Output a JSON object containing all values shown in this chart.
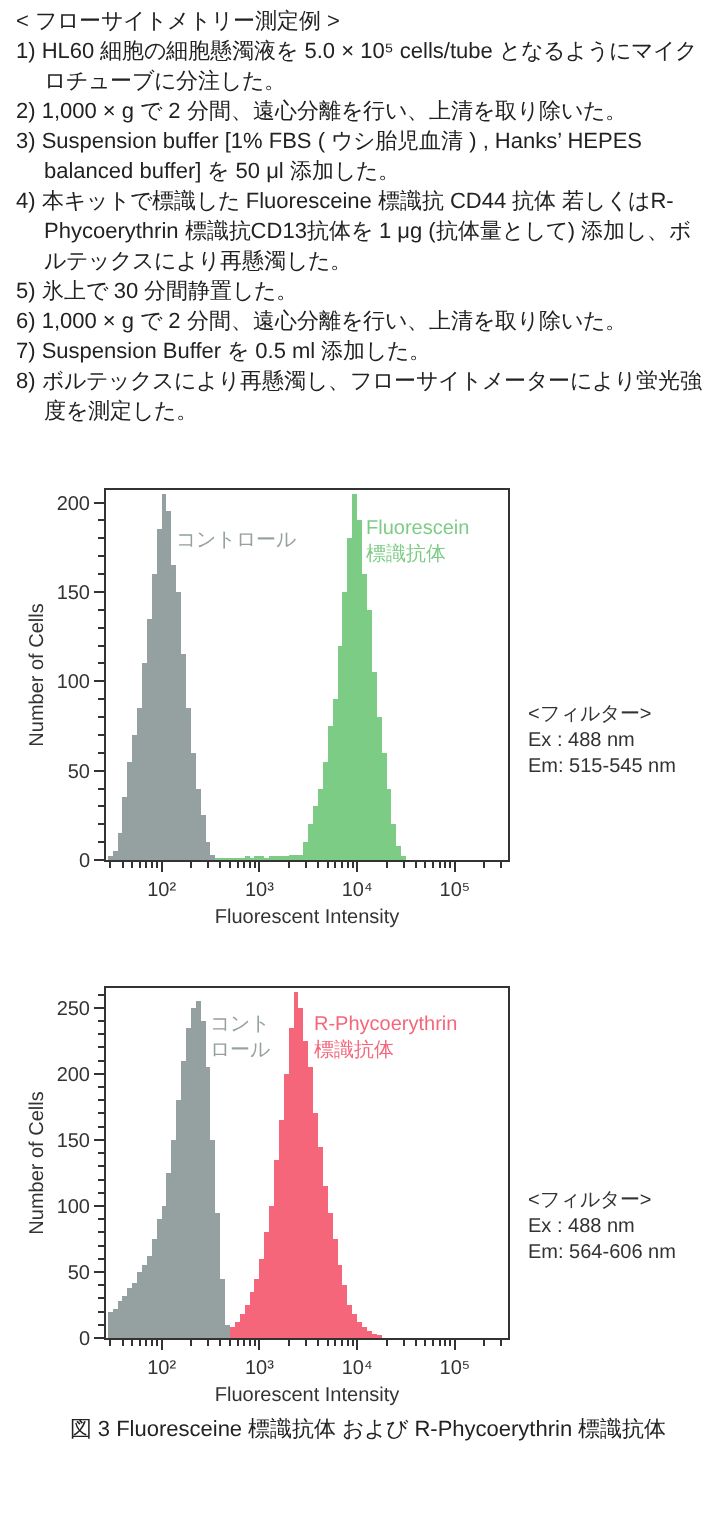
{
  "chart_data": [
    {
      "type": "histogram",
      "title": "< フローサイトメトリー測定例 >",
      "subtitle": "1) HL60 細胞の細胞懸濁液を 5.0 × 10⁵ cells/tube となるようにマイクロチューブに分注した。\n2) 1,000 × g で 2 分間、遠心分離を行い、上清を取り除いた。\n3) Suspension buffer [1% FBS ( ウシ胎児血清 ) , Hanks’ HEPES balanced buffer] を 50 μl 添加した。\n4) 本キットで標識した Fluoresceine 標識抗 CD44 抗体 若しくはR-Phycoerythrin 標識抗CD13抗体を 1 μg (抗体量として) 添加し、ボルテックスにより再懸濁した。\n5) 氷上で 30 分間静置した。\n6) 1,000 × g で 2 分間、遠心分離を行い、上清を取り除いた。\n7) Suspension Buffer を 0.5 ml 添加した。\n8) ボルテックスにより再懸濁し、フローサイトメーターにより蛍光強度を測定した。",
      "xlabel": "Fluorescent Intensity",
      "ylabel": "Number of Cells",
      "annotations": [
        "<フィルター>\nEx : 488 nm\nEm: 515-545 nm"
      ],
      "log": "x",
      "xlim": [
        27,
        350000
      ],
      "xticks": [
        {
          "value": 30,
          "label": null
        },
        {
          "value": 40,
          "label": null
        },
        {
          "value": 50,
          "label": null
        },
        {
          "value": 60,
          "label": null
        },
        {
          "value": 70,
          "label": null
        },
        {
          "value": 80,
          "label": null
        },
        {
          "value": 90,
          "label": null
        },
        {
          "value": 100,
          "label": "10²"
        },
        {
          "value": 200,
          "label": null
        },
        {
          "value": 300,
          "label": null
        },
        {
          "value": 400,
          "label": null
        },
        {
          "value": 500,
          "label": null
        },
        {
          "value": 600,
          "label": null
        },
        {
          "value": 700,
          "label": null
        },
        {
          "value": 800,
          "label": null
        },
        {
          "value": 900,
          "label": null
        },
        {
          "value": 1000,
          "label": "10³"
        },
        {
          "value": 2000,
          "label": null
        },
        {
          "value": 3000,
          "label": null
        },
        {
          "value": 4000,
          "label": null
        },
        {
          "value": 5000,
          "label": null
        },
        {
          "value": 6000,
          "label": null
        },
        {
          "value": 7000,
          "label": null
        },
        {
          "value": 8000,
          "label": null
        },
        {
          "value": 9000,
          "label": null
        },
        {
          "value": 10000,
          "label": "10⁴"
        },
        {
          "value": 20000,
          "label": null
        },
        {
          "value": 30000,
          "label": null
        },
        {
          "value": 40000,
          "label": null
        },
        {
          "value": 50000,
          "label": null
        },
        {
          "value": 60000,
          "label": null
        },
        {
          "value": 70000,
          "label": null
        },
        {
          "value": 80000,
          "label": null
        },
        {
          "value": 90000,
          "label": null
        },
        {
          "value": 100000,
          "label": "10⁵"
        },
        {
          "value": 200000,
          "label": null
        },
        {
          "value": 300000,
          "label": null
        }
      ],
      "ylim": [
        0,
        207
      ],
      "yticks": [
        0,
        {
          "value": 10,
          "label": null
        },
        {
          "value": 20,
          "label": null
        },
        {
          "value": 30,
          "label": null
        },
        {
          "value": 40,
          "label": null
        },
        50,
        {
          "value": 60,
          "label": null
        },
        {
          "value": 70,
          "label": null
        },
        {
          "value": 80,
          "label": null
        },
        {
          "value": 90,
          "label": null
        },
        100,
        {
          "value": 110,
          "label": null
        },
        {
          "value": 120,
          "label": null
        },
        {
          "value": 130,
          "label": null
        },
        {
          "value": 140,
          "label": null
        },
        150,
        {
          "value": 160,
          "label": null
        },
        {
          "value": 170,
          "label": null
        },
        {
          "value": 180,
          "label": null
        },
        {
          "value": 190,
          "label": null
        },
        200
      ],
      "bins": [
        28.2,
        31.6,
        35.5,
        39.8,
        44.7,
        50.1,
        56.2,
        63.1,
        70.8,
        79.4,
        89.1,
        100,
        112,
        126,
        141,
        158,
        178,
        200,
        224,
        251,
        282,
        316,
        355,
        398,
        447,
        501,
        562,
        631,
        708,
        794,
        891,
        1000,
        1120,
        1260,
        1410,
        1580,
        1780,
        2000,
        2240,
        2510,
        2820,
        3160,
        3550,
        3980,
        4470,
        5010,
        5620,
        6310,
        7080,
        7940,
        8910,
        10000,
        11200,
        12600,
        14100,
        15800,
        17800,
        20000,
        22400,
        25100,
        28200,
        31600
      ],
      "series": [
        {
          "name": "コントロール",
          "color": "#95a0a0",
          "values": [
            2,
            5,
            15,
            35,
            55,
            70,
            85,
            110,
            135,
            160,
            185,
            205,
            195,
            165,
            150,
            115,
            85,
            60,
            40,
            25,
            10,
            3,
            null,
            null,
            null,
            null,
            null,
            null,
            null,
            null,
            null,
            null,
            null,
            null,
            null,
            null,
            null,
            null,
            null,
            null,
            null,
            null,
            null,
            null,
            null,
            null,
            null,
            null,
            null,
            null,
            null,
            null,
            null,
            null,
            null,
            null,
            null,
            null,
            null,
            null,
            null
          ]
        },
        {
          "name": "Fluorescein\n標識抗体",
          "color": "#7dcc85",
          "values": [
            null,
            null,
            null,
            null,
            null,
            null,
            null,
            null,
            null,
            null,
            null,
            null,
            null,
            null,
            null,
            null,
            null,
            null,
            null,
            null,
            null,
            null,
            1,
            1,
            1,
            1,
            1,
            1,
            2,
            1,
            2,
            2,
            1,
            2,
            2,
            2,
            2,
            3,
            3,
            3,
            10,
            20,
            30,
            40,
            55,
            75,
            90,
            120,
            150,
            180,
            205,
            190,
            160,
            140,
            105,
            80,
            60,
            40,
            20,
            8,
            2
          ]
        }
      ]
    },
    {
      "type": "histogram",
      "title": "図 3 Fluoresceine 標識抗体 および R-Phycoerythrin 標識抗体",
      "xlabel": "Fluorescent Intensity",
      "ylabel": "Number of Cells",
      "annotations": [
        "<フィルター>\nEx : 488 nm\nEm: 564-606 nm"
      ],
      "log": "x",
      "xlim": [
        27,
        350000
      ],
      "xticks": [
        {
          "value": 30,
          "label": null
        },
        {
          "value": 40,
          "label": null
        },
        {
          "value": 50,
          "label": null
        },
        {
          "value": 60,
          "label": null
        },
        {
          "value": 70,
          "label": null
        },
        {
          "value": 80,
          "label": null
        },
        {
          "value": 90,
          "label": null
        },
        {
          "value": 100,
          "label": "10²"
        },
        {
          "value": 200,
          "label": null
        },
        {
          "value": 300,
          "label": null
        },
        {
          "value": 400,
          "label": null
        },
        {
          "value": 500,
          "label": null
        },
        {
          "value": 600,
          "label": null
        },
        {
          "value": 700,
          "label": null
        },
        {
          "value": 800,
          "label": null
        },
        {
          "value": 900,
          "label": null
        },
        {
          "value": 1000,
          "label": "10³"
        },
        {
          "value": 2000,
          "label": null
        },
        {
          "value": 3000,
          "label": null
        },
        {
          "value": 4000,
          "label": null
        },
        {
          "value": 5000,
          "label": null
        },
        {
          "value": 6000,
          "label": null
        },
        {
          "value": 7000,
          "label": null
        },
        {
          "value": 8000,
          "label": null
        },
        {
          "value": 9000,
          "label": null
        },
        {
          "value": 10000,
          "label": "10⁴"
        },
        {
          "value": 20000,
          "label": null
        },
        {
          "value": 30000,
          "label": null
        },
        {
          "value": 40000,
          "label": null
        },
        {
          "value": 50000,
          "label": null
        },
        {
          "value": 60000,
          "label": null
        },
        {
          "value": 70000,
          "label": null
        },
        {
          "value": 80000,
          "label": null
        },
        {
          "value": 90000,
          "label": null
        },
        {
          "value": 100000,
          "label": "10⁵"
        },
        {
          "value": 200000,
          "label": null
        },
        {
          "value": 300000,
          "label": null
        }
      ],
      "ylim": [
        0,
        265
      ],
      "yticks": [
        0,
        {
          "value": 10,
          "label": null
        },
        {
          "value": 20,
          "label": null
        },
        {
          "value": 30,
          "label": null
        },
        {
          "value": 40,
          "label": null
        },
        50,
        {
          "value": 60,
          "label": null
        },
        {
          "value": 70,
          "label": null
        },
        {
          "value": 80,
          "label": null
        },
        {
          "value": 90,
          "label": null
        },
        100,
        {
          "value": 110,
          "label": null
        },
        {
          "value": 120,
          "label": null
        },
        {
          "value": 130,
          "label": null
        },
        {
          "value": 140,
          "label": null
        },
        150,
        {
          "value": 160,
          "label": null
        },
        {
          "value": 170,
          "label": null
        },
        {
          "value": 180,
          "label": null
        },
        {
          "value": 190,
          "label": null
        },
        200,
        {
          "value": 210,
          "label": null
        },
        {
          "value": 220,
          "label": null
        },
        {
          "value": 230,
          "label": null
        },
        {
          "value": 240,
          "label": null
        },
        250,
        {
          "value": 260,
          "label": null
        }
      ],
      "bins": [
        28.2,
        31.6,
        35.5,
        39.8,
        44.7,
        50.1,
        56.2,
        63.1,
        70.8,
        79.4,
        89.1,
        100,
        112,
        126,
        141,
        158,
        178,
        200,
        224,
        251,
        282,
        316,
        355,
        398,
        447,
        501,
        562,
        631,
        708,
        794,
        891,
        1000,
        1120,
        1260,
        1410,
        1580,
        1780,
        2000,
        2240,
        2510,
        2820,
        3160,
        3550,
        3980,
        4470,
        5010,
        5620,
        6310,
        7080,
        7940,
        8910,
        10000,
        11200,
        12600,
        14100,
        15800,
        17800
      ],
      "series": [
        {
          "name": "コントロール",
          "color": "#95a0a0",
          "values": [
            20,
            22,
            28,
            32,
            38,
            42,
            50,
            55,
            62,
            75,
            90,
            100,
            125,
            150,
            180,
            210,
            235,
            250,
            255,
            240,
            205,
            150,
            95,
            45,
            10,
            null,
            null,
            null,
            null,
            null,
            null,
            null,
            null,
            null,
            null,
            null,
            null,
            null,
            null,
            null,
            null,
            null,
            null,
            null,
            null,
            null,
            null,
            null,
            null,
            null,
            null,
            null,
            null,
            null,
            null,
            null
          ]
        },
        {
          "name": "R-Phycoerythrin\n標識抗体",
          "color": "#f5667a",
          "values": [
            null,
            null,
            null,
            null,
            null,
            null,
            null,
            null,
            null,
            null,
            null,
            null,
            null,
            null,
            null,
            null,
            null,
            null,
            null,
            null,
            null,
            null,
            null,
            null,
            null,
            8,
            12,
            18,
            25,
            35,
            45,
            60,
            80,
            100,
            135,
            165,
            200,
            235,
            262,
            250,
            225,
            205,
            170,
            145,
            115,
            95,
            75,
            55,
            40,
            25,
            18,
            12,
            8,
            5,
            3,
            2
          ]
        }
      ]
    }
  ]
}
